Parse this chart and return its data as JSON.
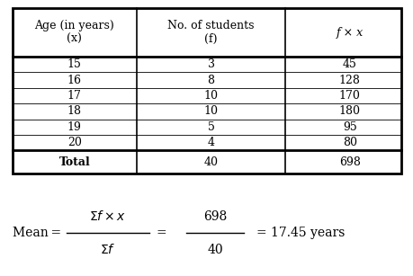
{
  "col_headers": [
    "Age (in years)\n(x)",
    "No. of students\n(f)",
    "f × x"
  ],
  "rows": [
    [
      "15",
      "3",
      "45"
    ],
    [
      "16",
      "8",
      "128"
    ],
    [
      "17",
      "10",
      "170"
    ],
    [
      "18",
      "10",
      "180"
    ],
    [
      "19",
      "5",
      "95"
    ],
    [
      "20",
      "4",
      "80"
    ]
  ],
  "total_row": [
    "Total",
    "40",
    "698"
  ],
  "bg_color": "#ffffff",
  "border_color": "#000000",
  "text_color": "#000000",
  "header_fontsize": 9,
  "cell_fontsize": 9,
  "formula_fontsize": 10
}
